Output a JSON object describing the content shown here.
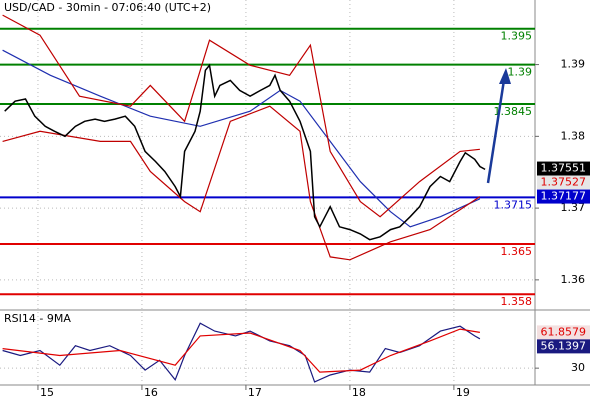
{
  "chart_data": [
    {
      "type": "line",
      "title": "USD/CAD - 30min - 07:06:40 (UTC+2)",
      "color": "#000000",
      "x": [
        14.68,
        14.78,
        14.88,
        14.97,
        15.07,
        15.16,
        15.26,
        15.36,
        15.45,
        15.55,
        15.64,
        15.74,
        15.84,
        15.93,
        16.03,
        16.13,
        16.22,
        16.32,
        16.37,
        16.41,
        16.51,
        16.56,
        16.61,
        16.65,
        16.7,
        16.75,
        16.85,
        16.94,
        17.04,
        17.14,
        17.23,
        17.28,
        17.33,
        17.42,
        17.52,
        17.62,
        17.66,
        17.71,
        17.81,
        17.9,
        18.0,
        18.1,
        18.19,
        18.29,
        18.39,
        18.48,
        18.58,
        18.67,
        18.77,
        18.87,
        18.96,
        19.06,
        19.11,
        19.2,
        19.25,
        19.3
      ],
      "values": [
        1.3835,
        1.3849,
        1.3852,
        1.3828,
        1.3814,
        1.3807,
        1.38,
        1.3814,
        1.3821,
        1.3824,
        1.3821,
        1.3824,
        1.3828,
        1.3814,
        1.3779,
        1.3765,
        1.3751,
        1.373,
        1.3716,
        1.3779,
        1.3807,
        1.3835,
        1.3892,
        1.3899,
        1.3856,
        1.3871,
        1.3878,
        1.3864,
        1.3856,
        1.3864,
        1.3871,
        1.3885,
        1.3864,
        1.3849,
        1.3821,
        1.3779,
        1.3688,
        1.3674,
        1.3702,
        1.3674,
        1.367,
        1.3664,
        1.3656,
        1.366,
        1.367,
        1.3674,
        1.3688,
        1.3702,
        1.373,
        1.3744,
        1.3737,
        1.3765,
        1.3777,
        1.3768,
        1.3758,
        1.3754
      ],
      "xlim": [
        14.635,
        19.78
      ],
      "ylim": [
        1.3558,
        1.399
      ],
      "yticks": [
        1.39,
        1.38,
        1.37,
        1.36
      ],
      "grid": true,
      "overlays": [
        {
          "color": "#1f2fb0",
          "x": [
            14.66,
            15.12,
            15.6,
            16.08,
            16.56,
            17.04,
            17.33,
            17.52,
            17.81,
            18.1,
            18.39,
            18.58,
            18.87,
            19.25
          ],
          "values": [
            1.392,
            1.3885,
            1.3856,
            1.3828,
            1.3814,
            1.3835,
            1.3864,
            1.3849,
            1.3793,
            1.3737,
            1.3695,
            1.3674,
            1.3688,
            1.3713
          ]
        },
        {
          "color": "#c00000",
          "x": [
            14.66,
            15.02,
            15.4,
            15.89,
            16.08,
            16.41,
            16.65,
            17.04,
            17.42,
            17.62,
            17.81,
            18.1,
            18.29,
            18.67,
            19.06,
            19.25
          ],
          "values": [
            1.3969,
            1.3941,
            1.3856,
            1.3842,
            1.3871,
            1.3821,
            1.3934,
            1.3899,
            1.3885,
            1.3927,
            1.3779,
            1.3709,
            1.3688,
            1.3737,
            1.3779,
            1.3782
          ]
        },
        {
          "color": "#c00000",
          "x": [
            14.66,
            15.02,
            15.6,
            15.89,
            16.08,
            16.41,
            16.56,
            16.85,
            17.23,
            17.52,
            17.62,
            17.81,
            18.0,
            18.39,
            18.77,
            19.25
          ],
          "values": [
            1.3793,
            1.3807,
            1.3793,
            1.3793,
            1.3751,
            1.3709,
            1.3695,
            1.3821,
            1.3842,
            1.3807,
            1.3709,
            1.3632,
            1.3628,
            1.3653,
            1.367,
            1.3716
          ]
        }
      ],
      "levels": {
        "values": [
          1.395,
          1.39,
          1.3845,
          1.3715,
          1.365,
          1.358
        ],
        "colors": [
          "#008000",
          "#008000",
          "#008000",
          "#0000cc",
          "#e00000",
          "#e00000"
        ]
      },
      "markers": [
        {
          "value": 1.37551,
          "color": "#000000",
          "text_color": "#ffffff"
        },
        {
          "value": 1.37527,
          "color": "#e6e6e6",
          "text_color": "#e00000"
        },
        {
          "value": 1.37177,
          "color": "#0000cc",
          "text_color": "#ffffff"
        }
      ]
    },
    {
      "type": "line",
      "title": "RSI14 - 9MA",
      "xlim": [
        14.635,
        19.78
      ],
      "xticks": [
        15,
        16,
        17,
        18,
        19
      ],
      "ylim": [
        15,
        80
      ],
      "yticks": [
        30
      ],
      "series": [
        {
          "color": "#1a1a80",
          "x": [
            14.66,
            14.83,
            15.02,
            15.21,
            15.36,
            15.5,
            15.69,
            15.89,
            16.03,
            16.17,
            16.32,
            16.41,
            16.56,
            16.7,
            16.9,
            17.04,
            17.23,
            17.42,
            17.57,
            17.66,
            17.81,
            18.0,
            18.19,
            18.34,
            18.48,
            18.67,
            18.87,
            19.06,
            19.2,
            19.25
          ],
          "values": [
            45.7,
            41.3,
            45.7,
            32.6,
            50,
            45.7,
            50,
            41.3,
            28.3,
            37.0,
            19.6,
            41.3,
            70.0,
            63.0,
            58.7,
            63.0,
            54.3,
            50,
            41.3,
            17.8,
            23.9,
            28.3,
            26.5,
            47.4,
            43.9,
            50,
            63.0,
            67.4,
            58.7,
            56.1397
          ]
        },
        {
          "color": "#e00000",
          "x": [
            14.66,
            15.21,
            15.79,
            16.32,
            16.56,
            17.04,
            17.52,
            17.71,
            18.1,
            18.39,
            18.77,
            19.06,
            19.25
          ],
          "values": [
            47.4,
            41.3,
            45.7,
            32.6,
            58.7,
            61.3,
            45.7,
            26.5,
            28.3,
            41.3,
            54.3,
            64.8,
            61.8579
          ]
        }
      ]
    }
  ]
}
